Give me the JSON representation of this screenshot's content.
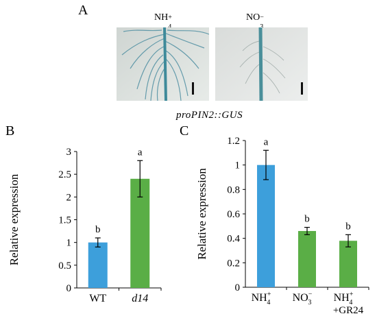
{
  "panel_a": {
    "label": "A",
    "photos": [
      {
        "main": "NH",
        "sub": "4",
        "sup": "+"
      },
      {
        "main": "NO",
        "sub": "3",
        "sup": "−"
      }
    ],
    "caption": "proPIN2::GUS"
  },
  "chart_data": [
    {
      "panel": "B",
      "type": "bar",
      "ylabel": "Relative expression",
      "ylim": [
        0,
        3
      ],
      "yticks": [
        "0",
        "0.5",
        "1",
        "1.5",
        "2",
        "2.5",
        "3"
      ],
      "categories": [
        "WT",
        "d14"
      ],
      "values": [
        1.0,
        2.4
      ],
      "errors": [
        0.1,
        0.4
      ],
      "letters": [
        "b",
        "a"
      ],
      "colors": [
        "#3d9fdb",
        "#5aae46"
      ],
      "italic_categories": [
        false,
        true
      ]
    },
    {
      "panel": "C",
      "type": "bar",
      "ylabel": "Relative expression",
      "ylim": [
        0,
        1.2
      ],
      "yticks": [
        "0",
        "0.2",
        "0.4",
        "0.6",
        "0.8",
        "1",
        "1.2"
      ],
      "categories": [
        {
          "main": "NH",
          "sub": "4",
          "sup": "+",
          "line2": ""
        },
        {
          "main": "NO",
          "sub": "3",
          "sup": "−",
          "line2": ""
        },
        {
          "main": "NH",
          "sub": "4",
          "sup": "+",
          "line2": "+GR24"
        }
      ],
      "values": [
        1.0,
        0.46,
        0.38
      ],
      "errors": [
        0.12,
        0.03,
        0.05
      ],
      "letters": [
        "a",
        "b",
        "b"
      ],
      "colors": [
        "#3d9fdb",
        "#5aae46",
        "#5aae46"
      ]
    }
  ]
}
